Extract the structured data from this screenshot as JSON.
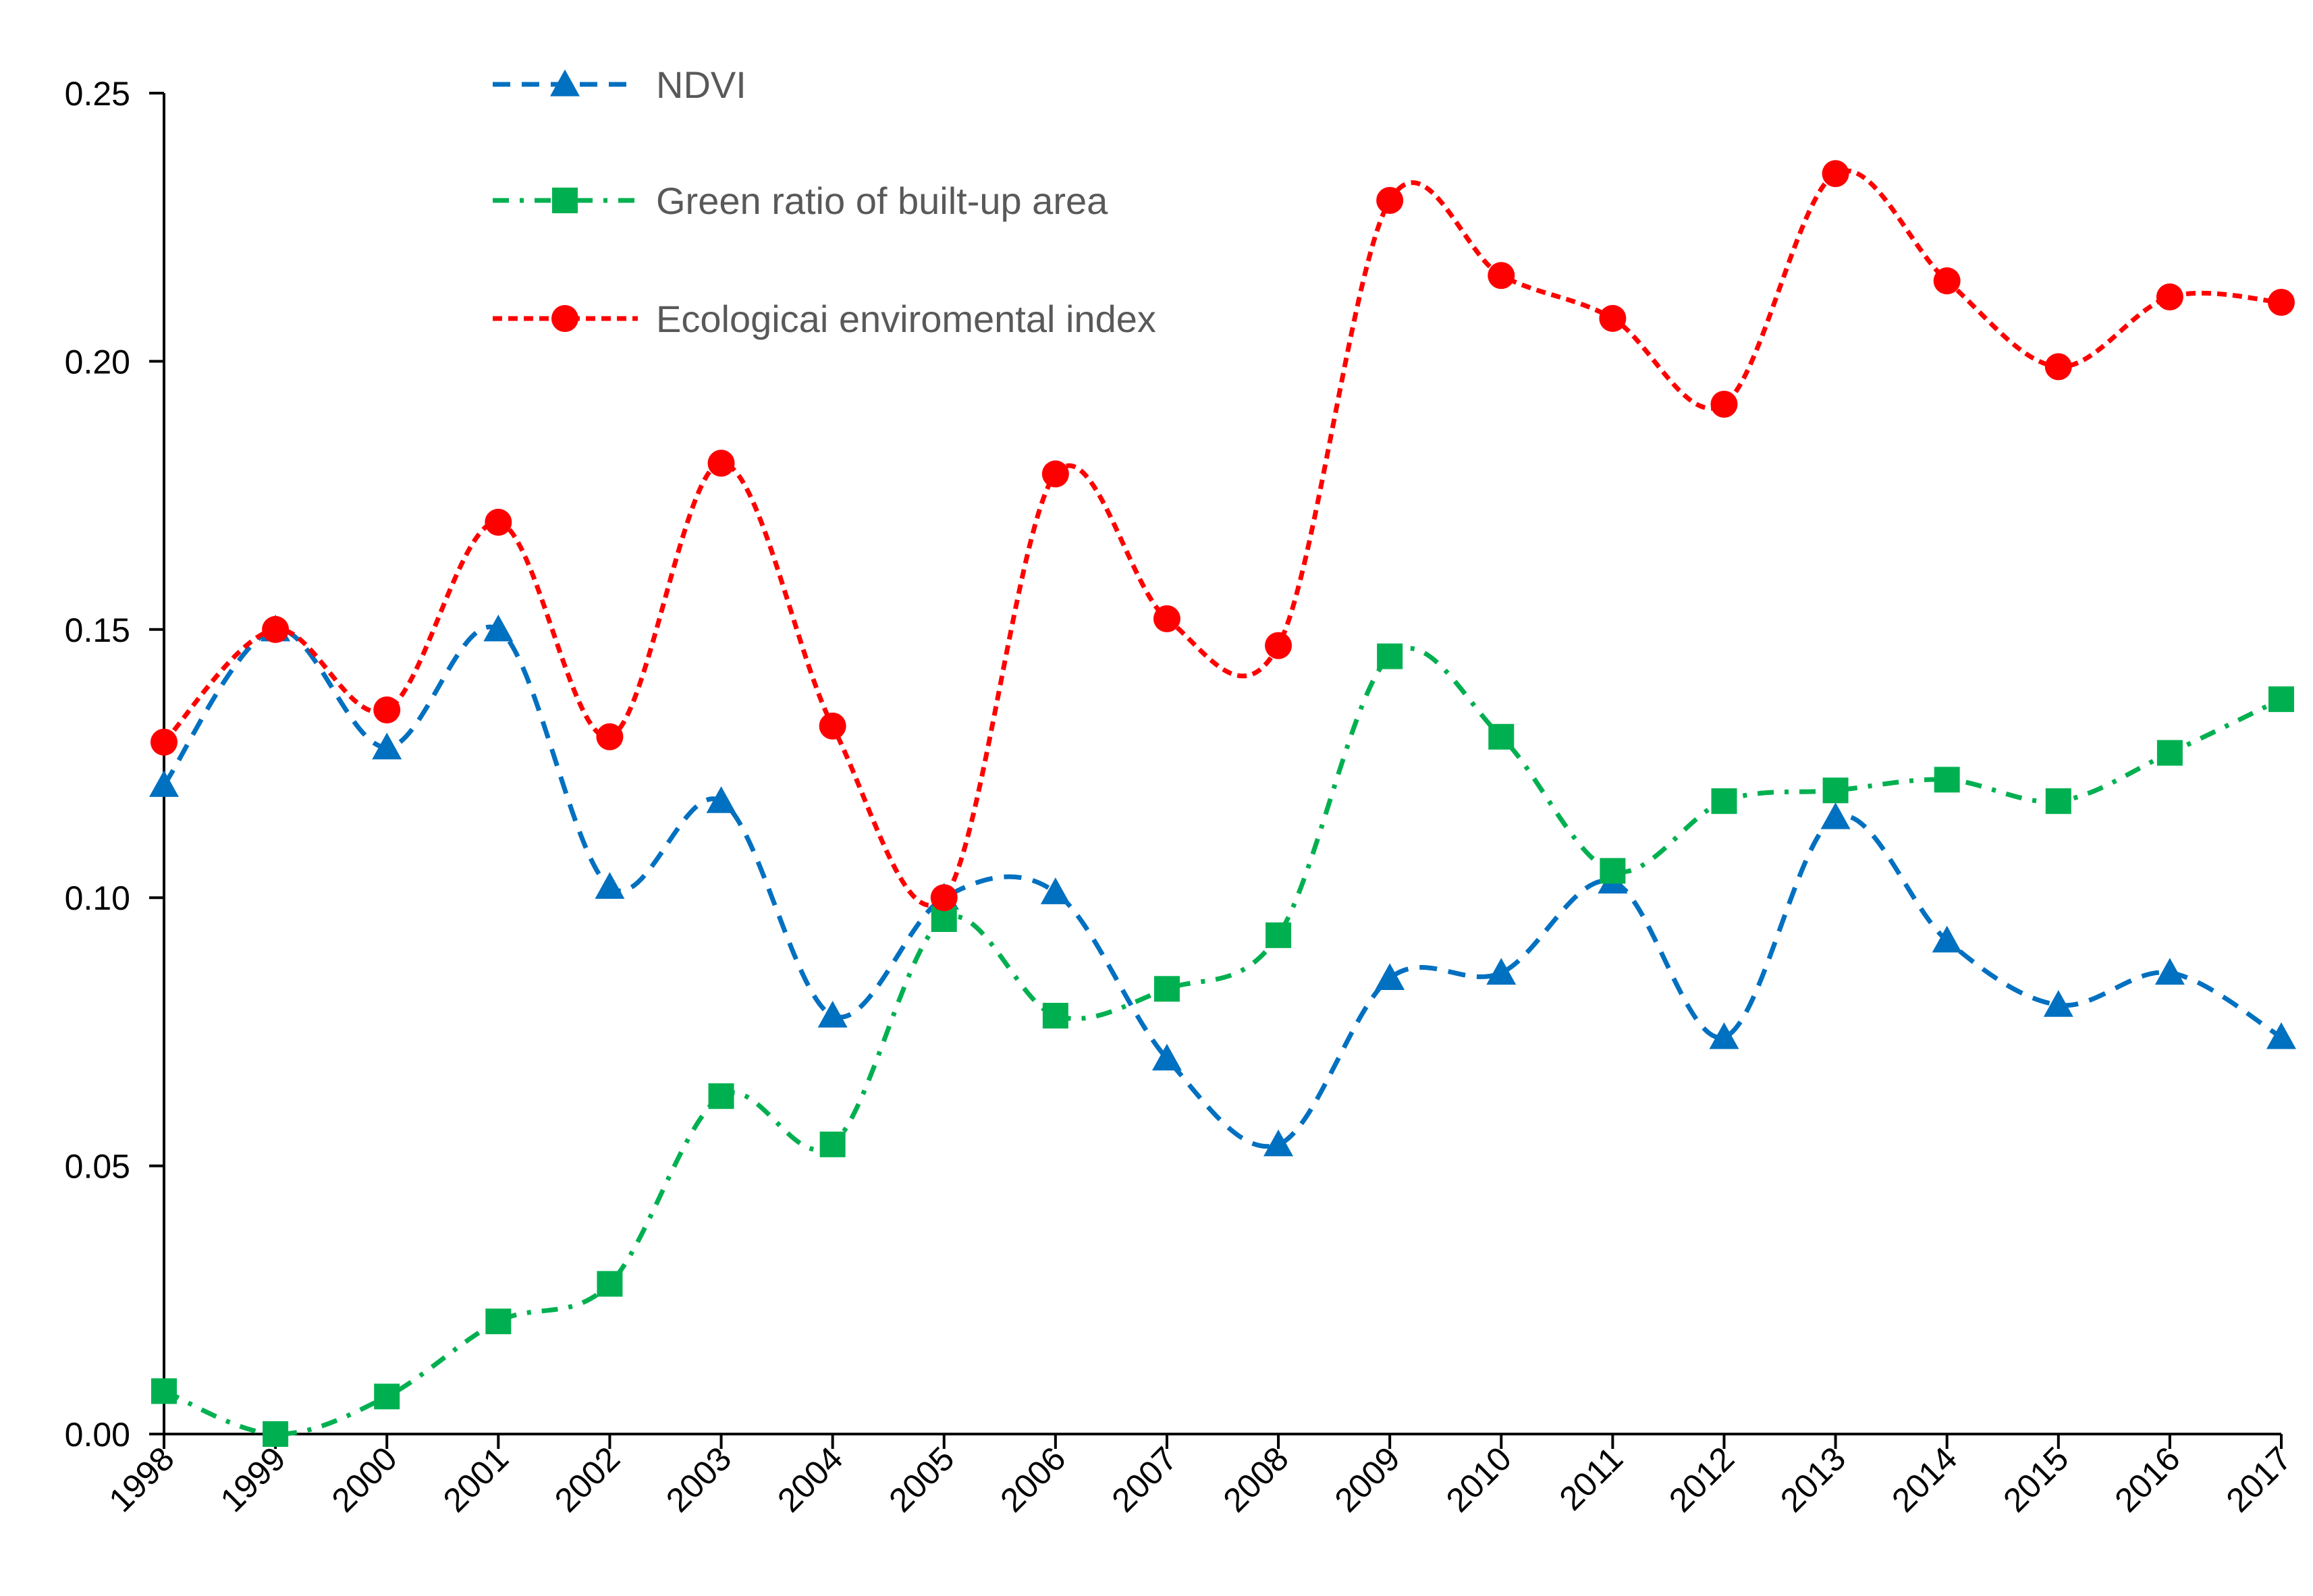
{
  "chart_data": {
    "type": "line",
    "title": "",
    "xlabel": "",
    "ylabel": "",
    "categories": [
      "1998",
      "1999",
      "2000",
      "2001",
      "2002",
      "2003",
      "2004",
      "2005",
      "2006",
      "2007",
      "2008",
      "2009",
      "2010",
      "2011",
      "2012",
      "2013",
      "2014",
      "2015",
      "2016",
      "2017"
    ],
    "ylim": [
      0,
      0.25
    ],
    "yticks": [
      "0.00",
      "0.05",
      "0.10",
      "0.15",
      "0.20",
      "0.25"
    ],
    "grid": false,
    "legend_position": "top-center",
    "series": [
      {
        "name": "NDVI",
        "color": "#0070C0",
        "marker": "triangle",
        "dash": "dashed",
        "values": [
          0.121,
          0.15,
          0.128,
          0.15,
          0.102,
          0.118,
          0.078,
          0.1,
          0.101,
          0.07,
          0.054,
          0.085,
          0.086,
          0.103,
          0.074,
          0.115,
          0.092,
          0.08,
          0.086,
          0.074
        ]
      },
      {
        "name": "Green ratio of built-up area",
        "color": "#00B050",
        "marker": "square",
        "dash": "dash-dot",
        "values": [
          0.008,
          0.0,
          0.007,
          0.021,
          0.028,
          0.063,
          0.054,
          0.096,
          0.078,
          0.083,
          0.093,
          0.145,
          0.13,
          0.105,
          0.118,
          0.12,
          0.122,
          0.118,
          0.127,
          0.137
        ]
      },
      {
        "name": "Ecologicai enviromental index",
        "color": "#FF0000",
        "marker": "circle",
        "dash": "short-dash",
        "values": [
          0.129,
          0.15,
          0.135,
          0.17,
          0.13,
          0.181,
          0.132,
          0.1,
          0.179,
          0.152,
          0.147,
          0.23,
          0.216,
          0.208,
          0.192,
          0.235,
          0.215,
          0.199,
          0.212,
          0.211
        ]
      }
    ]
  }
}
